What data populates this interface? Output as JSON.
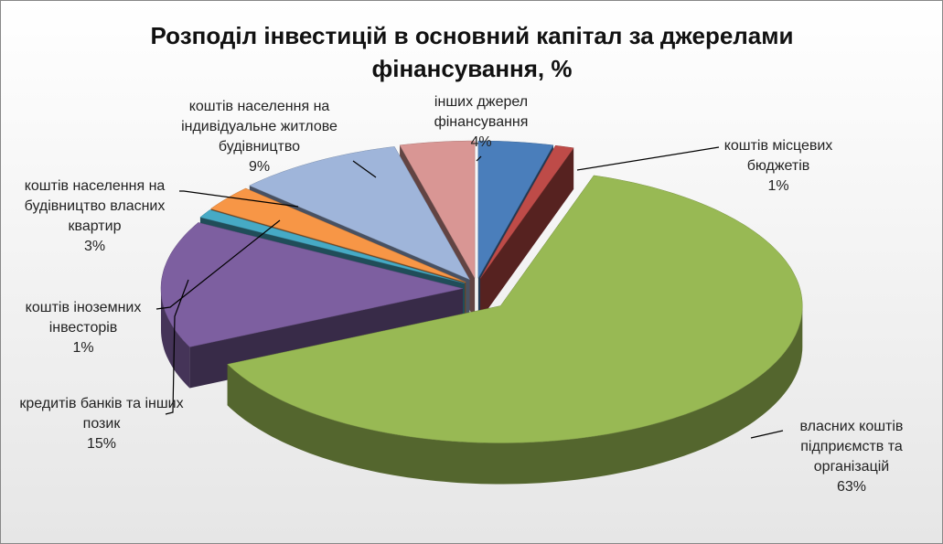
{
  "chart_data": {
    "type": "pie3d",
    "title": "Розподіл інвестицій в основний капітал за джерелами фінансування, %",
    "categories": [
      null,
      "коштів місцевих бюджетів",
      "власних коштів підприємств та організацій",
      "кредитів банків та інших позик",
      "коштів іноземних інвесторів",
      "коштів населення на будівництво власних квартир",
      "коштів населення на індивідуальне житлове будівництво",
      "інших джерел фінансування"
    ],
    "values": [
      4,
      1,
      63,
      15,
      1,
      3,
      9,
      4
    ],
    "value_labels": [
      null,
      "1%",
      "63%",
      "15%",
      "1%",
      "3%",
      "9%",
      "4%"
    ],
    "colors": [
      "#4a7ebb",
      "#be4b48",
      "#98b954",
      "#7d5fa0",
      "#46aac5",
      "#f79646",
      "#9fb5da",
      "#d99694"
    ]
  }
}
